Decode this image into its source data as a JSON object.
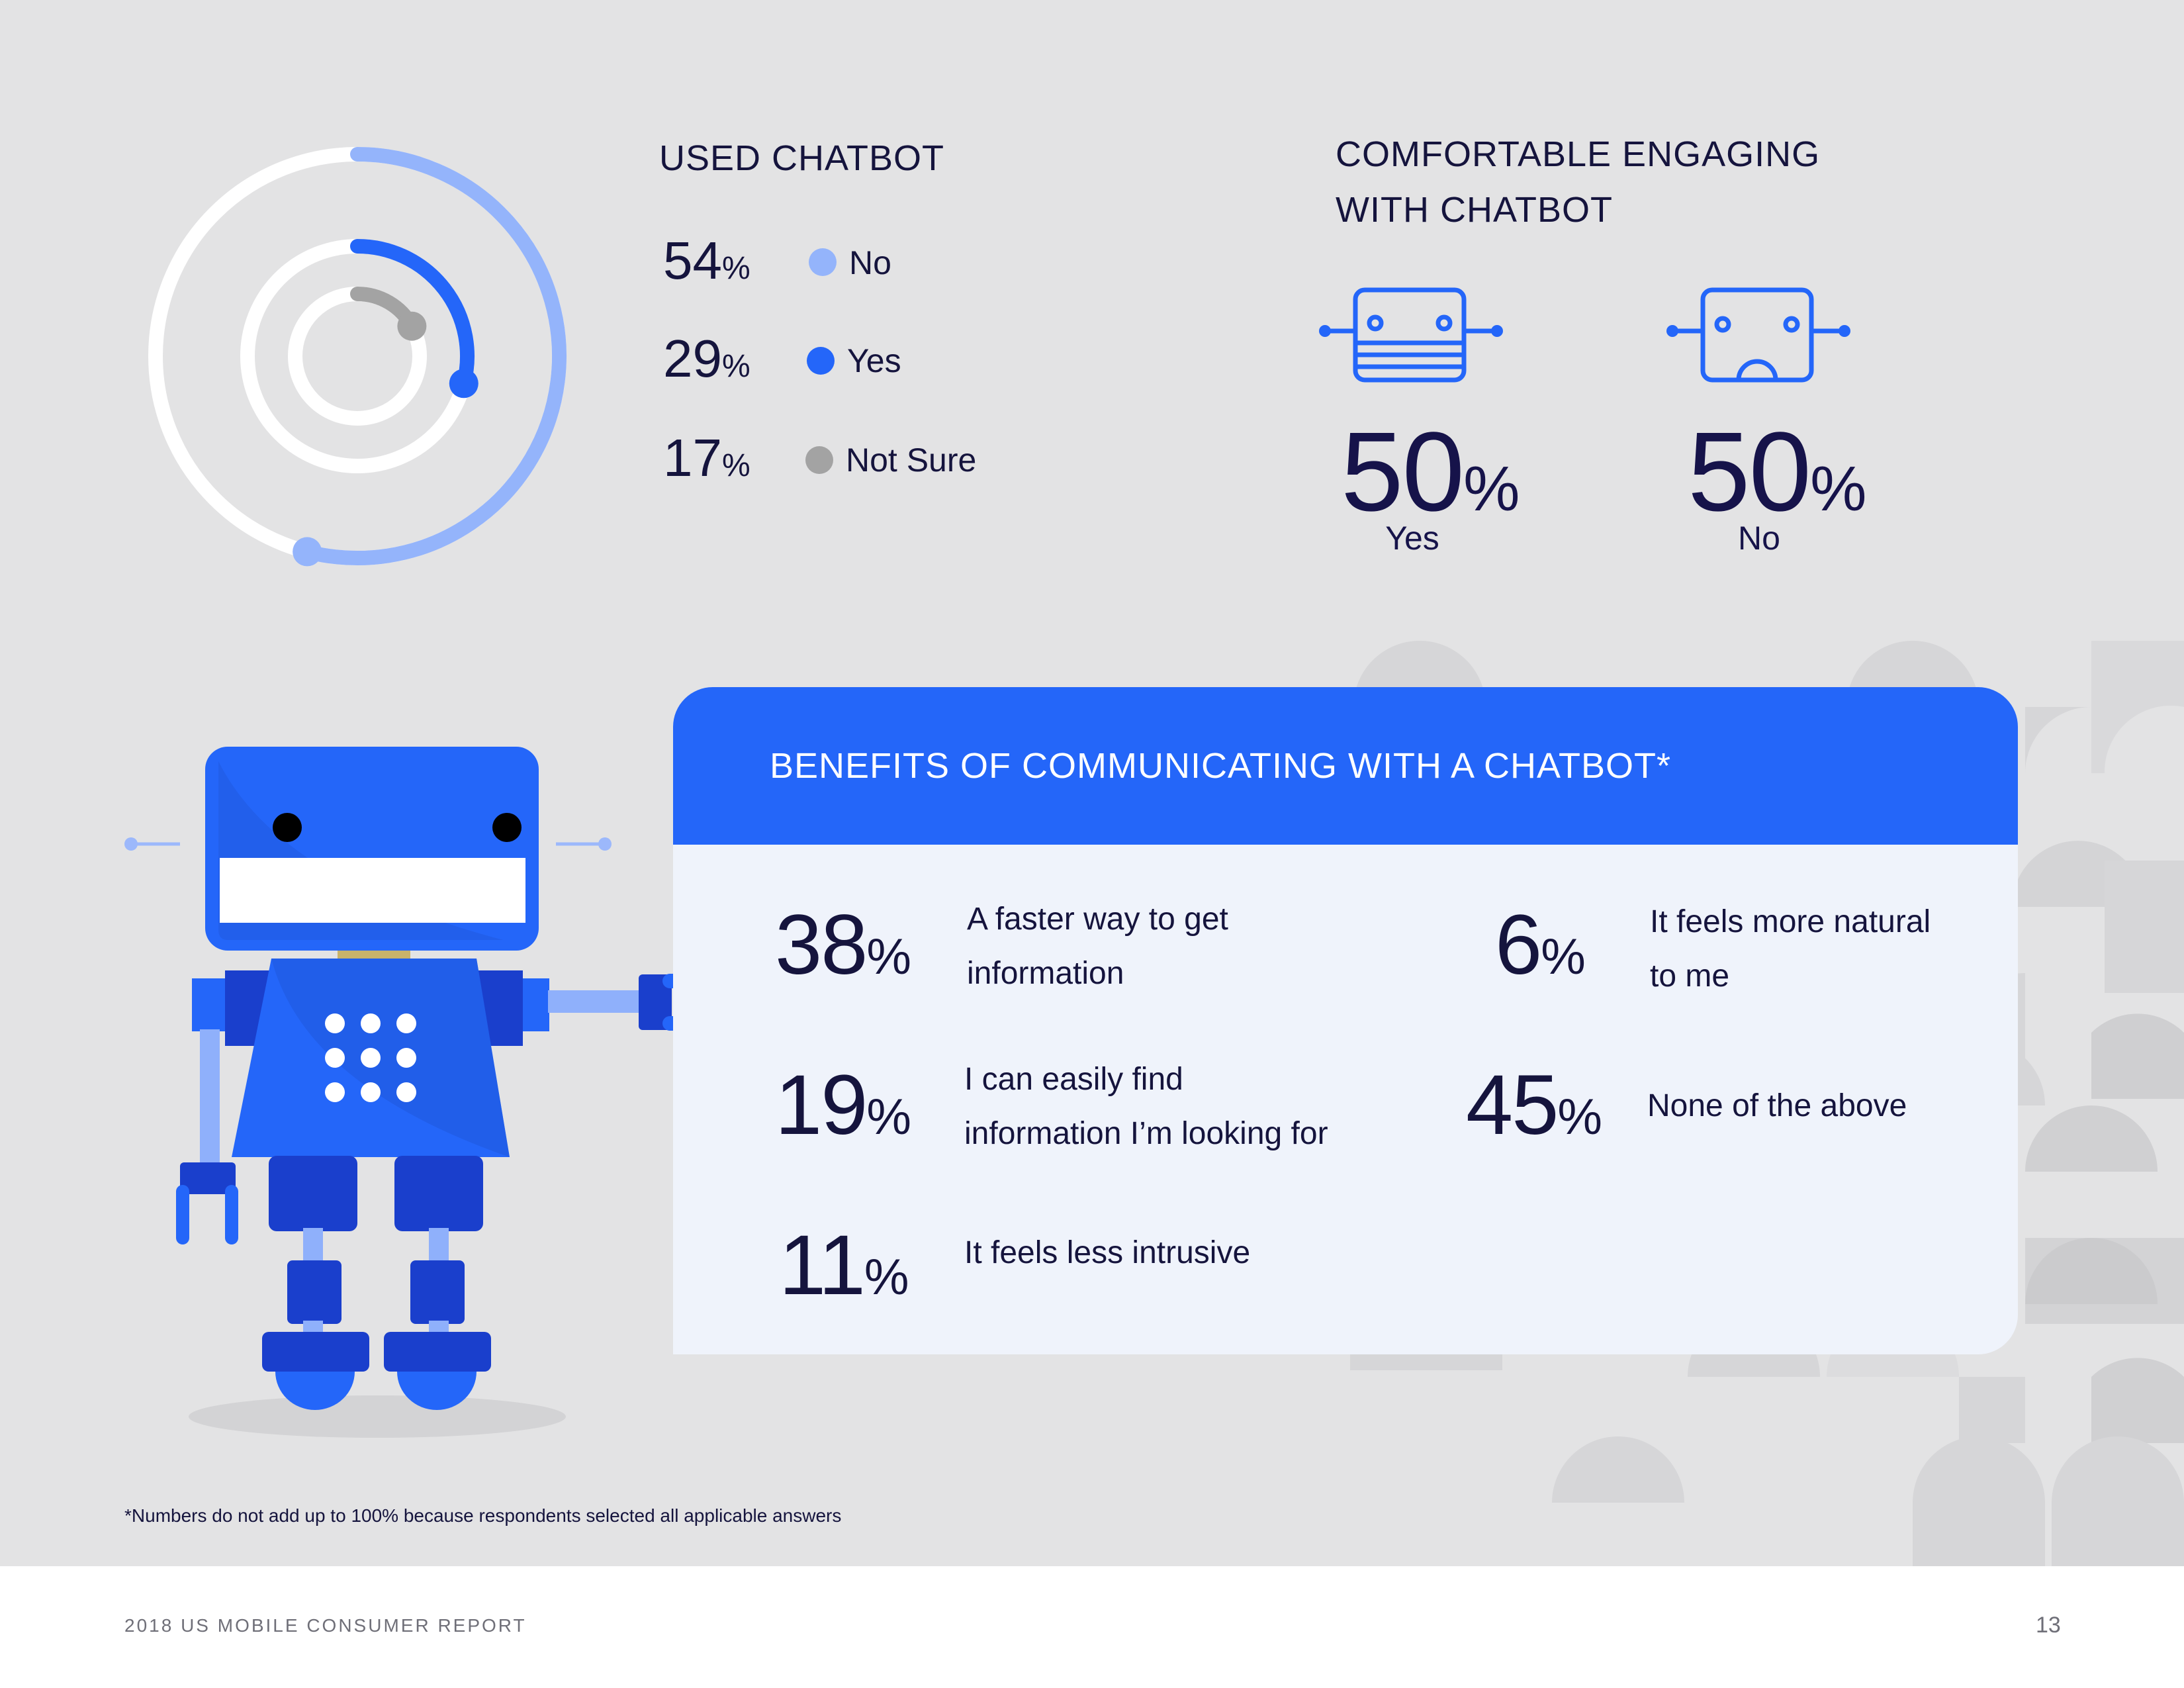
{
  "colors": {
    "background": "#e3e3e4",
    "no": "#94b4fb",
    "yes": "#2466f9",
    "not_sure": "#a3a3a3",
    "text_dark": "#15143d",
    "card_bg": "#eff3fb",
    "card_header": "#2466f9"
  },
  "chart_data": [
    {
      "type": "pie",
      "style": "concentric-rings",
      "title": "USED CHATBOT",
      "series": [
        {
          "name": "No",
          "value": 54,
          "color": "#94b4fb"
        },
        {
          "name": "Yes",
          "value": 29,
          "color": "#2466f9"
        },
        {
          "name": "Not Sure",
          "value": 17,
          "color": "#a3a3a3"
        }
      ],
      "unit": "%"
    },
    {
      "type": "table",
      "title": "COMFORTABLE ENGAGING WITH CHATBOT",
      "categories": [
        "Yes",
        "No"
      ],
      "values": [
        50,
        50
      ],
      "unit": "%",
      "icons": [
        "smiling-robot-head-icon",
        "sad-robot-head-icon"
      ]
    },
    {
      "type": "table",
      "title": "BENEFITS OF COMMUNICATING WITH A CHATBOT*",
      "categories": [
        "A faster way to get information",
        "I can easily find information I’m looking for",
        "It feels less intrusive",
        "It feels more natural to me",
        "None of the above"
      ],
      "values": [
        38,
        19,
        11,
        6,
        45
      ],
      "unit": "%"
    }
  ],
  "used_chatbot": {
    "title": "USED CHATBOT",
    "items": [
      {
        "value": "54",
        "unit": "%",
        "label": "No"
      },
      {
        "value": "29",
        "unit": "%",
        "label": "Yes"
      },
      {
        "value": "17",
        "unit": "%",
        "label": "Not Sure"
      }
    ]
  },
  "comfortable": {
    "title_line1": "COMFORTABLE ENGAGING",
    "title_line2": "WITH CHATBOT",
    "items": [
      {
        "value": "50",
        "unit": "%",
        "label": "Yes"
      },
      {
        "value": "50",
        "unit": "%",
        "label": "No"
      }
    ]
  },
  "benefits": {
    "title": "BENEFITS OF COMMUNICATING WITH A CHATBOT*",
    "items": [
      {
        "value": "38",
        "unit": "%",
        "line1": "A faster way to get",
        "line2": "information"
      },
      {
        "value": "19",
        "unit": "%",
        "line1": "I can easily find",
        "line2": "information I’m looking for"
      },
      {
        "value": "11",
        "unit": "%",
        "line1": "It feels less intrusive",
        "line2": ""
      },
      {
        "value": "6",
        "unit": "%",
        "line1": "It feels more natural",
        "line2": "to me"
      },
      {
        "value": "45",
        "unit": "%",
        "line1": "None of the above",
        "line2": ""
      }
    ]
  },
  "footnote": "*Numbers do not add up to 100% because respondents selected all applicable answers",
  "footer": {
    "report_title": "2018 US MOBILE CONSUMER REPORT",
    "page_number": "13"
  },
  "illustration": {
    "icon": "robot-mascot-icon"
  }
}
